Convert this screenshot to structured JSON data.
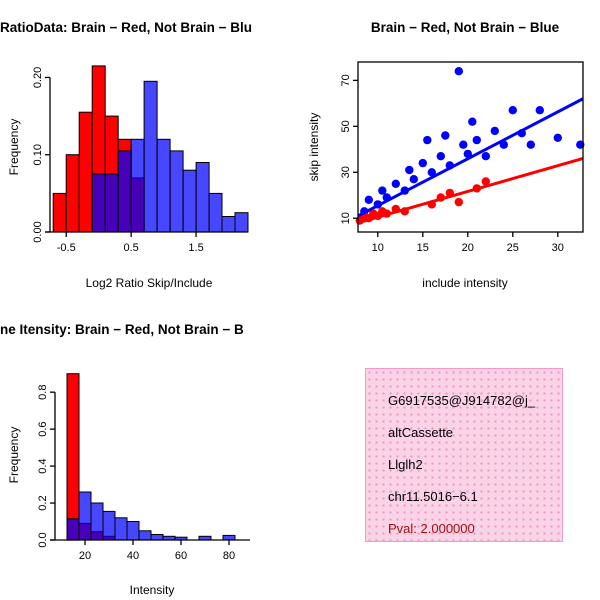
{
  "colors": {
    "brain_red": "#ff0000",
    "not_brain_blue": "#0000ff",
    "overlap_purple": "#8b3aa8",
    "pval_red": "#a01010",
    "info_background": "#fbd3e6",
    "info_dot": "#eb9ec9",
    "info_border": "#ef9cc6"
  },
  "chart_data": [
    {
      "type": "bar",
      "variant": "overlaid-histogram",
      "title": "RatioData: Brain − Red, Not Brain − Blu",
      "xlabel": "Log2 Ratio Skip/Include",
      "ylabel": "Frequency",
      "xlim": [
        -0.75,
        2.3
      ],
      "ylim": [
        0,
        0.22
      ],
      "xticks": [
        -0.5,
        0.5,
        1.5
      ],
      "xtick_labels": [
        "-0.5",
        "0.5",
        "1.5"
      ],
      "yticks": [
        0,
        0.1,
        0.2
      ],
      "ytick_labels": [
        "0.00",
        "0.10",
        "0.20"
      ],
      "grid": false,
      "series": [
        {
          "name": "Brain",
          "color": "#ff0000",
          "bin_start": -0.7,
          "bin_width": 0.2,
          "values": [
            0.05,
            0.1,
            0.155,
            0.215,
            0.15,
            0.12,
            0.07
          ]
        },
        {
          "name": "Not Brain",
          "color": "#0000ff",
          "bin_start": -0.1,
          "bin_width": 0.2,
          "opacity": 0.72,
          "values": [
            0.075,
            0.075,
            0.105,
            0.12,
            0.195,
            0.12,
            0.105,
            0.08,
            0.09,
            0.05,
            0.02,
            0.025
          ]
        }
      ]
    },
    {
      "type": "scatter",
      "title": "Brain − Red, Not Brain − Blue",
      "xlabel": "include intensity",
      "ylabel": "skip intensity",
      "xlim": [
        7.8,
        32.8
      ],
      "ylim": [
        4,
        78
      ],
      "xticks": [
        10,
        15,
        20,
        25,
        30
      ],
      "xtick_labels": [
        "10",
        "15",
        "20",
        "25",
        "30"
      ],
      "yticks": [
        10,
        30,
        50,
        70
      ],
      "ytick_labels": [
        "10",
        "30",
        "50",
        "70"
      ],
      "box": true,
      "grid": false,
      "series": [
        {
          "name": "Not Brain",
          "color": "#0000ff",
          "points": [
            [
              8.5,
              13
            ],
            [
              9,
              18
            ],
            [
              10,
              16
            ],
            [
              10.5,
              22
            ],
            [
              11,
              19
            ],
            [
              12,
              25
            ],
            [
              13,
              22
            ],
            [
              13.5,
              31
            ],
            [
              14,
              27
            ],
            [
              15,
              34
            ],
            [
              15.5,
              44
            ],
            [
              16,
              30
            ],
            [
              17,
              37
            ],
            [
              17.5,
              46
            ],
            [
              18,
              33
            ],
            [
              19,
              74
            ],
            [
              19.5,
              42
            ],
            [
              20,
              38
            ],
            [
              20.5,
              52
            ],
            [
              21,
              44
            ],
            [
              22,
              37
            ],
            [
              23,
              48
            ],
            [
              24,
              42
            ],
            [
              25,
              57
            ],
            [
              26,
              47
            ],
            [
              27,
              42
            ],
            [
              28,
              57
            ],
            [
              30,
              45
            ],
            [
              32.5,
              42
            ]
          ],
          "fit_line": {
            "x": [
              7.8,
              32.8
            ],
            "y": [
              11,
              62
            ]
          }
        },
        {
          "name": "Brain",
          "color": "#ff0000",
          "points": [
            [
              8,
              9
            ],
            [
              8.5,
              11
            ],
            [
              9,
              10
            ],
            [
              9.5,
              12
            ],
            [
              10,
              11
            ],
            [
              10.5,
              13
            ],
            [
              11,
              12
            ],
            [
              12,
              14
            ],
            [
              13,
              13
            ],
            [
              16,
              16
            ],
            [
              17,
              19
            ],
            [
              18,
              21
            ],
            [
              19,
              17
            ],
            [
              21,
              23
            ],
            [
              22,
              26
            ]
          ],
          "fit_line": {
            "x": [
              7.8,
              32.8
            ],
            "y": [
              8,
              36
            ]
          }
        }
      ]
    },
    {
      "type": "bar",
      "variant": "overlaid-histogram",
      "title": "ne Itensity: Brain − Red, Not Brain − B",
      "xlabel": "Intensity",
      "ylabel": "Frequency",
      "xlim": [
        7.5,
        88.75
      ],
      "ylim": [
        0,
        0.92
      ],
      "xticks": [
        20,
        40,
        60,
        80
      ],
      "xtick_labels": [
        "20",
        "40",
        "60",
        "80"
      ],
      "yticks": [
        0,
        0.2,
        0.4,
        0.6,
        0.8
      ],
      "ytick_labels": [
        "0.0",
        "0.2",
        "0.4",
        "0.6",
        "0.8"
      ],
      "grid": false,
      "series": [
        {
          "name": "Brain",
          "color": "#ff0000",
          "bin_start": 12.5,
          "bin_width": 5,
          "values": [
            0.9,
            0.09,
            0.045,
            0.02
          ]
        },
        {
          "name": "Not Brain",
          "color": "#0000ff",
          "bin_start": 12.5,
          "bin_width": 5,
          "opacity": 0.72,
          "values": [
            0.115,
            0.26,
            0.2,
            0.155,
            0.12,
            0.1,
            0.05,
            0.03,
            0.02,
            0.015,
            0,
            0.02,
            0,
            0.025
          ]
        }
      ]
    }
  ],
  "info_box": {
    "lines": [
      "G6917535@J914782@j_",
      "altCassette",
      "Llglh2",
      "chr11.5016−6.1"
    ],
    "pval": "Pval: 2.000000"
  }
}
